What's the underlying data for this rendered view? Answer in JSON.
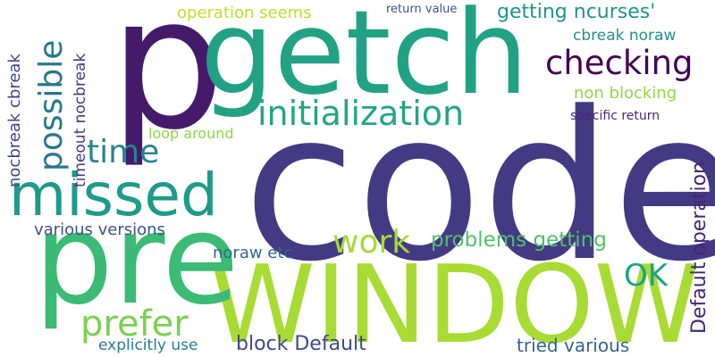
{
  "words": {
    "p": "p",
    "getch": "getch",
    "code": "code",
    "window": "WINDOW",
    "pre": "pre",
    "missed": "missed",
    "initialization": "initialization",
    "checking": "checking",
    "time": "time",
    "possible": "possible",
    "work": "work",
    "problems_getting": "problems getting",
    "prefer": "prefer",
    "ok": "OK",
    "block_default": "block Default",
    "default_operation": "Default operation",
    "various_versions": "various versions",
    "noraw_etc": "noraw etc",
    "tried_various": "tried various",
    "explicitly_use": "explicitly use",
    "operation_seems": "operation seems",
    "getting_ncurses": "getting ncurses'",
    "cbreak_noraw": "cbreak noraw",
    "non_blocking": "non blocking",
    "specific_return": "specific return",
    "loop_around": "loop around",
    "return_value": "return value",
    "nocbreak_cbreak": "nocbreak cbreak",
    "timeout_nocbreak": "timeout nocbreak"
  },
  "colors": {
    "dark_purple": "#440154",
    "indigo": "#46337e",
    "slate_blue": "#3e4a89",
    "steel_blue": "#31688e",
    "teal_blue": "#26828e",
    "teal": "#1f9e89",
    "green": "#35b779",
    "light_green": "#6ece58",
    "lime": "#b5de2b",
    "yellow_green": "#a5db36"
  }
}
